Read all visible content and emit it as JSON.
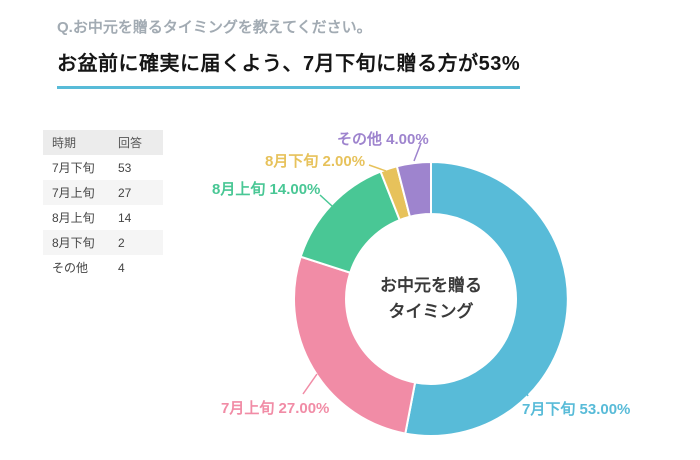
{
  "header": {
    "question": "Q.お中元を贈るタイミングを教えてください。",
    "headline": "お盆前に確実に届くよう、7月下旬に贈る方が53%"
  },
  "colors": {
    "accent": "#58BBD8"
  },
  "table": {
    "headers": [
      "時期",
      "回答"
    ],
    "rows": [
      {
        "label": "7月下旬",
        "value": "53"
      },
      {
        "label": "7月上旬",
        "value": "27"
      },
      {
        "label": "8月上旬",
        "value": "14"
      },
      {
        "label": "8月下旬",
        "value": "2"
      },
      {
        "label": "その他",
        "value": "4"
      }
    ]
  },
  "chart_data": {
    "type": "pie",
    "donut": true,
    "title": "お中元を贈るタイミング",
    "center_label_lines": [
      "お中元を贈る",
      "タイミング"
    ],
    "categories": [
      "7月下旬",
      "7月上旬",
      "8月上旬",
      "8月下旬",
      "その他"
    ],
    "values": [
      53,
      27,
      14,
      2,
      4
    ],
    "unit": "%",
    "labels": [
      "7月下旬 53.00%",
      "7月上旬 27.00%",
      "8月上旬 14.00%",
      "8月下旬 2.00%",
      "その他 4.00%"
    ],
    "colors": [
      "#58BBD8",
      "#F18CA6",
      "#49C795",
      "#E7C25B",
      "#9E84CE"
    ],
    "start_angle_deg": 0,
    "direction": "clockwise",
    "legend_position": "callout-labels"
  }
}
